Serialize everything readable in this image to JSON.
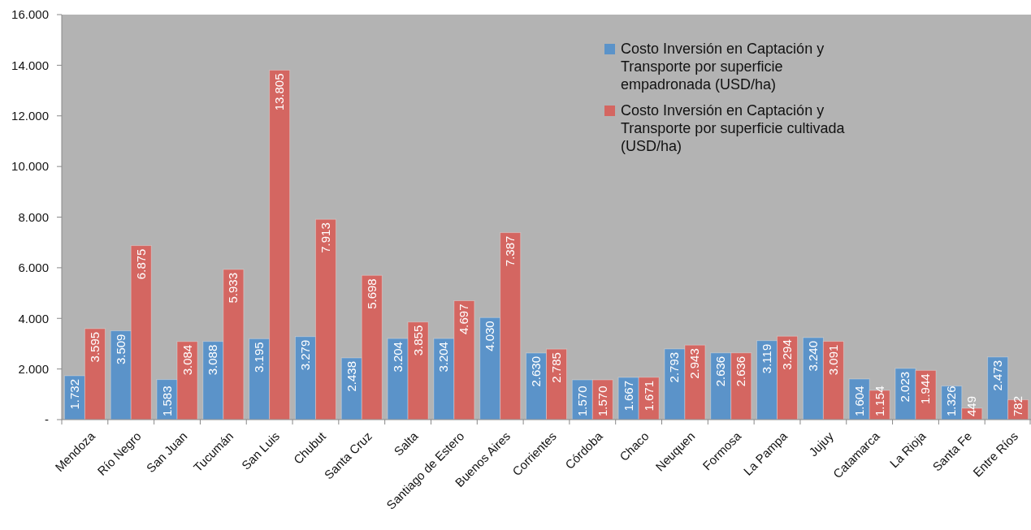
{
  "chart_data": {
    "type": "bar",
    "categories": [
      "Mendoza",
      "Río Negro",
      "San Juan",
      "Tucumán",
      "San Luis",
      "Chubut",
      "Santa Cruz",
      "Salta",
      "Santiago de Estero",
      "Buenos Aires",
      "Corrientes",
      "Córdoba",
      "Chaco",
      "Neuquen",
      "Formosa",
      "La Pampa",
      "Jujuy",
      "Catamarca",
      "La Rioja",
      "Santa Fe",
      "Entre Ríos"
    ],
    "series": [
      {
        "name": "Costo Inversión en Captación y Transporte por superficie empadronada (USD/ha)",
        "color": "#5b93c9",
        "values": [
          1732,
          3509,
          1583,
          3088,
          3195,
          3279,
          2438,
          3204,
          3204,
          4030,
          2630,
          1570,
          1667,
          2793,
          2636,
          3119,
          3240,
          1604,
          2023,
          1326,
          2473
        ],
        "value_labels": [
          "1.732",
          "3.509",
          "1.583",
          "3.088",
          "3.195",
          "3.279",
          "2.438",
          "3.204",
          "3.204",
          "4.030",
          "2.630",
          "1.570",
          "1.667",
          "2.793",
          "2.636",
          "3.119",
          "3.240",
          "1.604",
          "2.023",
          "1.326",
          "2.473"
        ]
      },
      {
        "name": "Costo Inversión en Captación y Transporte por superficie cultivada (USD/ha)",
        "color": "#d46661",
        "values": [
          3595,
          6875,
          3084,
          5933,
          13805,
          7913,
          5698,
          3855,
          4697,
          7387,
          2785,
          1570,
          1671,
          2943,
          2636,
          3294,
          3091,
          1154,
          1944,
          449,
          782
        ],
        "value_labels": [
          "3.595",
          "6.875",
          "3.084",
          "5.933",
          "13.805",
          "7.913",
          "5.698",
          "3.855",
          "4.697",
          "7.387",
          "2.785",
          "1.570",
          "1.671",
          "2.943",
          "2.636",
          "3.294",
          "3.091",
          "1.154",
          "1.944",
          "449",
          "782"
        ]
      }
    ],
    "ylim": [
      0,
      16000
    ],
    "yticks": [
      {
        "value": 0,
        "label": "-"
      },
      {
        "value": 2000,
        "label": "2.000"
      },
      {
        "value": 4000,
        "label": "4.000"
      },
      {
        "value": 6000,
        "label": "6.000"
      },
      {
        "value": 8000,
        "label": "8.000"
      },
      {
        "value": 10000,
        "label": "10.000"
      },
      {
        "value": 12000,
        "label": "12.000"
      },
      {
        "value": 14000,
        "label": "14.000"
      },
      {
        "value": 16000,
        "label": "16.000"
      }
    ],
    "grid": false,
    "legend": "top right"
  }
}
